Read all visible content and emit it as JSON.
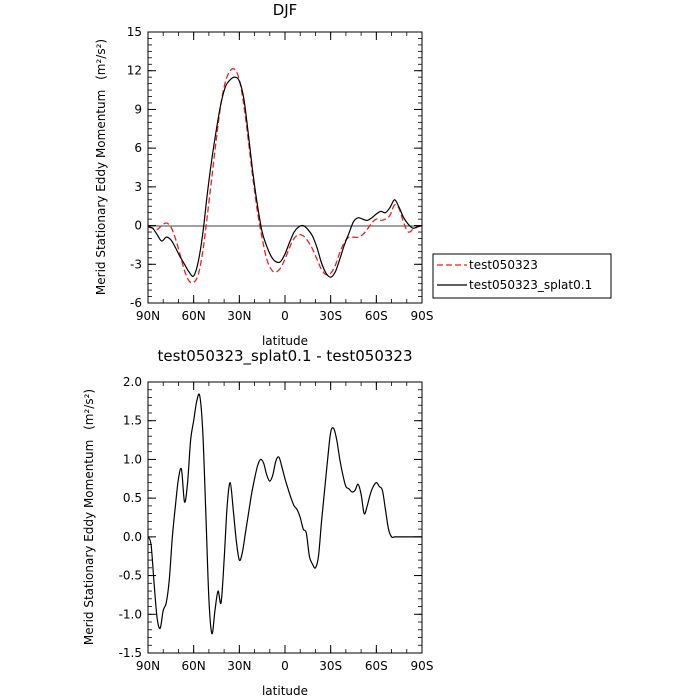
{
  "chart_data": [
    {
      "type": "line",
      "title": "DJF",
      "xlabel": "latitude",
      "ylabel": "Merid Stationary Eddy Momentum",
      "ylabel_units": "(m²/s²)",
      "x_tick_labels": [
        "90N",
        "60N",
        "30N",
        "0",
        "30S",
        "60S",
        "90S"
      ],
      "x_tick_values": [
        90,
        60,
        30,
        0,
        -30,
        -60,
        -90
      ],
      "y_tick_labels": [
        "-6",
        "-3",
        "0",
        "3",
        "6",
        "9",
        "12",
        "15"
      ],
      "y_tick_values": [
        -6,
        -3,
        0,
        3,
        6,
        9,
        12,
        15
      ],
      "xlim": [
        90,
        -90
      ],
      "ylim": [
        -6,
        15
      ],
      "legend": "right",
      "series": [
        {
          "name": "test050323",
          "color": "#e8231f",
          "dash": "dashed",
          "x": [
            90,
            87,
            84,
            81,
            78,
            75,
            72,
            69,
            66,
            63,
            60,
            57,
            54,
            51,
            48,
            45,
            42,
            39,
            36,
            33,
            30,
            27,
            24,
            21,
            18,
            15,
            12,
            9,
            6,
            3,
            0,
            -3,
            -6,
            -9,
            -12,
            -15,
            -18,
            -21,
            -24,
            -27,
            -30,
            -33,
            -36,
            -39,
            -42,
            -45,
            -48,
            -51,
            -54,
            -57,
            -60,
            -63,
            -66,
            -69,
            -72,
            -75,
            -78,
            -81,
            -84,
            -87,
            -90
          ],
          "y": [
            -0.1,
            -0.2,
            -0.3,
            0.0,
            0.2,
            -0.1,
            -1.0,
            -2.2,
            -3.5,
            -4.3,
            -4.4,
            -3.8,
            -2.0,
            0.8,
            3.8,
            6.8,
            9.5,
            11.2,
            12.0,
            12.1,
            11.3,
            9.3,
            6.5,
            3.6,
            1.0,
            -1.0,
            -2.6,
            -3.4,
            -3.6,
            -3.3,
            -2.6,
            -1.7,
            -1.0,
            -0.7,
            -0.8,
            -1.2,
            -1.8,
            -2.6,
            -3.4,
            -3.8,
            -3.7,
            -3.1,
            -2.1,
            -1.3,
            -0.9,
            -0.9,
            -0.9,
            -0.7,
            -0.3,
            0.2,
            0.5,
            0.4,
            0.5,
            0.8,
            1.6,
            1.3,
            0.2,
            -0.5,
            -0.3,
            -0.1,
            0.0
          ]
        },
        {
          "name": "test050323_splat0.1",
          "color": "#000000",
          "dash": "solid",
          "x": [
            90,
            87,
            84,
            81,
            78,
            75,
            72,
            69,
            66,
            63,
            60,
            57,
            54,
            51,
            48,
            45,
            42,
            39,
            36,
            33,
            30,
            27,
            24,
            21,
            18,
            15,
            12,
            9,
            6,
            3,
            0,
            -3,
            -6,
            -9,
            -12,
            -15,
            -18,
            -21,
            -24,
            -27,
            -30,
            -33,
            -36,
            -39,
            -42,
            -45,
            -48,
            -51,
            -54,
            -57,
            -60,
            -63,
            -66,
            -69,
            -72,
            -75,
            -78,
            -81,
            -84,
            -87,
            -90
          ],
          "y": [
            -0.1,
            -0.2,
            -0.7,
            -1.2,
            -0.9,
            -1.1,
            -1.7,
            -2.4,
            -3.0,
            -3.6,
            -3.9,
            -2.8,
            -0.6,
            2.5,
            5.2,
            7.5,
            9.5,
            10.8,
            11.3,
            11.5,
            11.2,
            9.8,
            7.0,
            4.0,
            1.5,
            -0.5,
            -1.6,
            -2.4,
            -2.8,
            -2.8,
            -2.2,
            -1.3,
            -0.5,
            -0.1,
            0.0,
            -0.3,
            -0.8,
            -1.7,
            -2.9,
            -3.7,
            -4.0,
            -3.6,
            -2.6,
            -1.5,
            -0.6,
            0.3,
            0.6,
            0.5,
            0.4,
            0.6,
            0.9,
            1.1,
            1.0,
            1.4,
            2.0,
            1.4,
            0.6,
            0.1,
            -0.2,
            -0.1,
            0.0
          ]
        }
      ]
    },
    {
      "type": "line",
      "title": "test050323_splat0.1 - test050323",
      "xlabel": "latitude",
      "ylabel": "Merid Stationary Eddy Momentum",
      "ylabel_units": "(m²/s²)",
      "x_tick_labels": [
        "90N",
        "60N",
        "30N",
        "0",
        "30S",
        "60S",
        "90S"
      ],
      "x_tick_values": [
        90,
        60,
        30,
        0,
        -30,
        -60,
        -90
      ],
      "y_tick_labels": [
        "-1.5",
        "-1.0",
        "-0.5",
        "0.0",
        "0.5",
        "1.0",
        "1.5",
        "2.0"
      ],
      "y_tick_values": [
        -1.5,
        -1.0,
        -0.5,
        0.0,
        0.5,
        1.0,
        1.5,
        2.0
      ],
      "xlim": [
        90,
        -90
      ],
      "ylim": [
        -1.5,
        2.0
      ],
      "series": [
        {
          "color": "#000000",
          "dash": "solid",
          "x": [
            90,
            88,
            86,
            84,
            82,
            80,
            78,
            76,
            74,
            72,
            70,
            68,
            66,
            64,
            62,
            60,
            58,
            56,
            54,
            52,
            50,
            48,
            46,
            44,
            42,
            40,
            38,
            36,
            34,
            32,
            30,
            28,
            26,
            24,
            22,
            20,
            18,
            16,
            14,
            12,
            10,
            8,
            6,
            4,
            2,
            0,
            -2,
            -4,
            -6,
            -8,
            -10,
            -12,
            -14,
            -16,
            -18,
            -20,
            -22,
            -24,
            -26,
            -28,
            -30,
            -32,
            -34,
            -36,
            -38,
            -40,
            -42,
            -44,
            -46,
            -48,
            -50,
            -52,
            -54,
            -56,
            -58,
            -60,
            -62,
            -64,
            -66,
            -68,
            -70,
            -72,
            -74,
            -76,
            -78,
            -80,
            -82,
            -84,
            -86,
            -88,
            -90
          ],
          "y": [
            0.0,
            -0.1,
            -0.6,
            -1.05,
            -1.18,
            -0.95,
            -0.85,
            -0.55,
            0.0,
            0.4,
            0.75,
            0.87,
            0.45,
            0.7,
            1.25,
            1.5,
            1.75,
            1.82,
            1.35,
            0.3,
            -0.8,
            -1.25,
            -0.95,
            -0.7,
            -0.85,
            -0.3,
            0.4,
            0.7,
            0.35,
            -0.05,
            -0.3,
            -0.2,
            0.05,
            0.3,
            0.55,
            0.75,
            0.92,
            1.0,
            0.95,
            0.8,
            0.72,
            0.8,
            0.98,
            1.03,
            0.9,
            0.75,
            0.62,
            0.5,
            0.4,
            0.35,
            0.25,
            0.1,
            0.05,
            -0.25,
            -0.35,
            -0.4,
            -0.25,
            0.2,
            0.6,
            1.0,
            1.35,
            1.4,
            1.25,
            1.0,
            0.8,
            0.65,
            0.62,
            0.58,
            0.6,
            0.68,
            0.55,
            0.3,
            0.4,
            0.55,
            0.65,
            0.7,
            0.65,
            0.6,
            0.35,
            0.1,
            0.0,
            0.0,
            0.0,
            0.0,
            0.0,
            0.0,
            0.0,
            0.0,
            0.0,
            0.0,
            0.0
          ]
        }
      ]
    }
  ]
}
